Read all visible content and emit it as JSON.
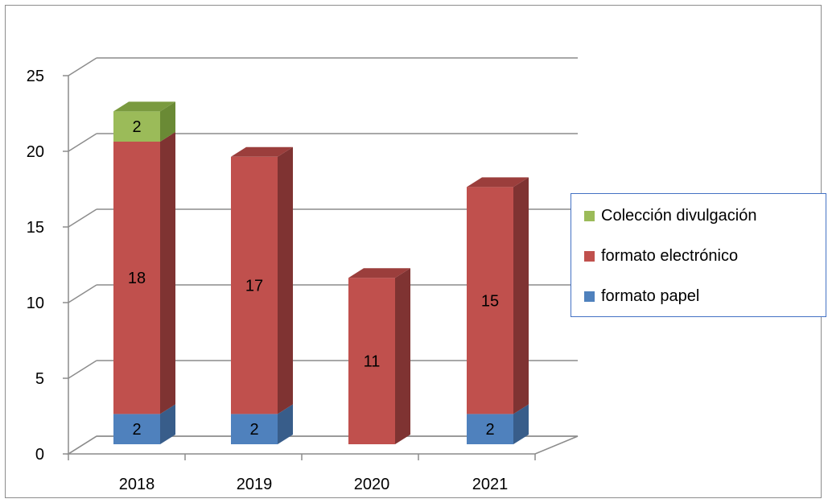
{
  "chart_data": {
    "type": "bar",
    "stacked": true,
    "three_d": true,
    "categories": [
      "2018",
      "2019",
      "2020",
      "2021"
    ],
    "series": [
      {
        "name": "formato papel",
        "values": [
          2,
          2,
          0,
          2
        ],
        "labels": [
          "2",
          "2",
          "",
          "2"
        ],
        "color": "#4f81bd",
        "side_color": "#385d8a",
        "top_color": "#4a74a8"
      },
      {
        "name": "formato electrónico",
        "values": [
          18,
          17,
          11,
          15
        ],
        "labels": [
          "18",
          "17",
          "11",
          "15"
        ],
        "color": "#c0504d",
        "side_color": "#7f3332",
        "top_color": "#9b3e3c"
      },
      {
        "name": "Colección divulgación",
        "values": [
          2,
          0,
          0,
          0
        ],
        "labels": [
          "2",
          "",
          "",
          ""
        ],
        "color": "#9bbb59",
        "side_color": "#6a8a35",
        "top_color": "#7a9a3f"
      }
    ],
    "legend_order": [
      2,
      1,
      0
    ],
    "y_ticks": [
      "0",
      "5",
      "10",
      "15",
      "20",
      "25"
    ],
    "ylim": [
      0,
      25
    ],
    "ystep": 5,
    "grid": true,
    "legend_position": "right",
    "colors": {
      "grid": "#8c8c8c",
      "axis": "#8c8c8c",
      "frame_border": "#8c8c8c",
      "legend_border": "#4472c4"
    }
  }
}
